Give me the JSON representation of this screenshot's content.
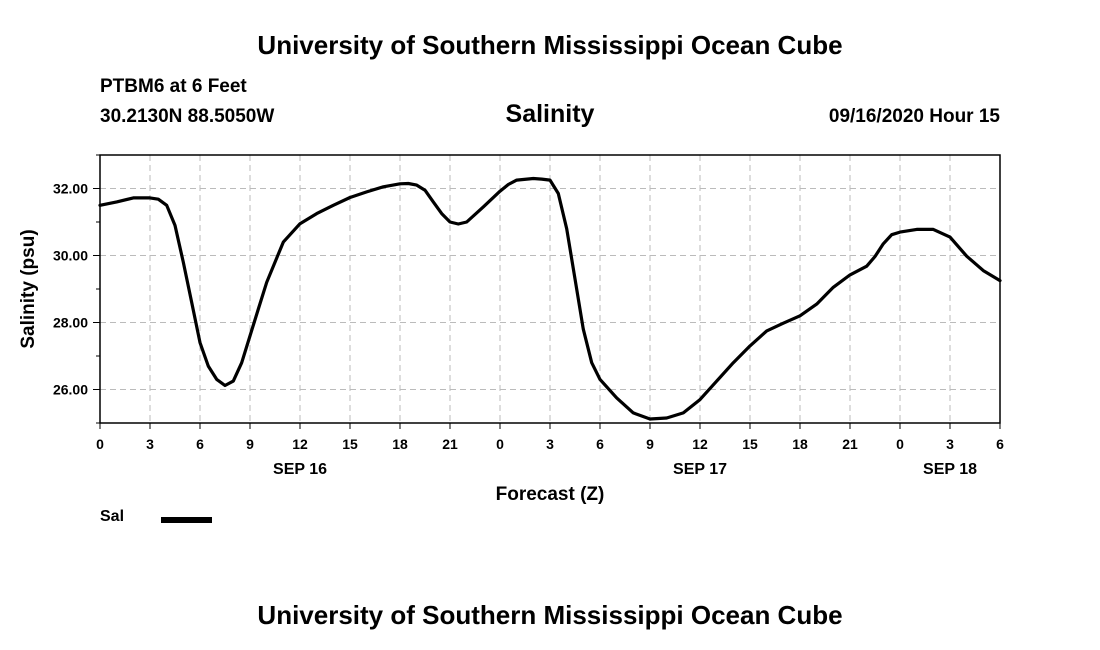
{
  "header": {
    "title": "University of Southern Mississippi Ocean Cube",
    "station": "PTBM6 at 6 Feet",
    "coords": "30.2130N 88.5050W",
    "datetime": "09/16/2020 Hour 15"
  },
  "footer": {
    "title": "University of Southern Mississippi Ocean Cube"
  },
  "legend": {
    "label": "Sal"
  },
  "colors": {
    "line": "#000000",
    "grid": "#bbbbbb",
    "background": "#ffffff"
  },
  "chart_data": {
    "type": "line",
    "title": "Salinity",
    "xlabel": "Forecast (Z)",
    "ylabel": "Salinity (psu)",
    "xlim": [
      0,
      54
    ],
    "ylim": [
      25,
      33
    ],
    "x_unit": "hours since 2020-09-16 00Z",
    "x_tick_values": [
      0,
      3,
      6,
      9,
      12,
      15,
      18,
      21,
      24,
      27,
      30,
      33,
      36,
      39,
      42,
      45,
      48,
      51,
      54
    ],
    "x_tick_labels": [
      "0",
      "3",
      "6",
      "9",
      "12",
      "15",
      "18",
      "21",
      "0",
      "3",
      "6",
      "9",
      "12",
      "15",
      "18",
      "21",
      "0",
      "3",
      "6"
    ],
    "date_labels": [
      {
        "x": 12,
        "label": "SEP 16"
      },
      {
        "x": 36,
        "label": "SEP 17"
      },
      {
        "x": 51,
        "label": "SEP 18"
      }
    ],
    "y_ticks": [
      26,
      28,
      30,
      32
    ],
    "y_tick_labels": [
      "26.00",
      "28.00",
      "30.00",
      "32.00"
    ],
    "grid": true,
    "series": [
      {
        "name": "Sal",
        "x": [
          0,
          1,
          2,
          3,
          3.5,
          4,
          4.5,
          5,
          5.5,
          6,
          6.5,
          7,
          7.5,
          8,
          8.5,
          9,
          9.5,
          10,
          11,
          12,
          13,
          14,
          15,
          16,
          17,
          18,
          18.5,
          19,
          19.5,
          20,
          20.5,
          21,
          21.5,
          22,
          23,
          24,
          24.5,
          25,
          26,
          26.5,
          27,
          27.5,
          28,
          28.5,
          29,
          29.5,
          30,
          31,
          32,
          33,
          34,
          35,
          36,
          37,
          38,
          39,
          40,
          41,
          42,
          43,
          44,
          45,
          46,
          46.5,
          47,
          47.5,
          48,
          49,
          50,
          51,
          52,
          53,
          54
        ],
        "y": [
          31.5,
          31.6,
          31.72,
          31.72,
          31.68,
          31.5,
          30.9,
          29.8,
          28.6,
          27.4,
          26.7,
          26.3,
          26.12,
          26.25,
          26.8,
          27.6,
          28.4,
          29.2,
          30.4,
          30.95,
          31.25,
          31.5,
          31.73,
          31.9,
          32.05,
          32.14,
          32.15,
          32.1,
          31.95,
          31.6,
          31.25,
          31.0,
          30.94,
          31.0,
          31.45,
          31.92,
          32.12,
          32.25,
          32.3,
          32.28,
          32.25,
          31.85,
          30.8,
          29.3,
          27.8,
          26.8,
          26.3,
          25.75,
          25.3,
          25.12,
          25.15,
          25.3,
          25.7,
          26.25,
          26.8,
          27.3,
          27.75,
          27.98,
          28.2,
          28.55,
          29.05,
          29.42,
          29.68,
          29.97,
          30.35,
          30.62,
          30.7,
          30.78,
          30.78,
          30.55,
          29.98,
          29.55,
          29.25
        ]
      }
    ]
  }
}
